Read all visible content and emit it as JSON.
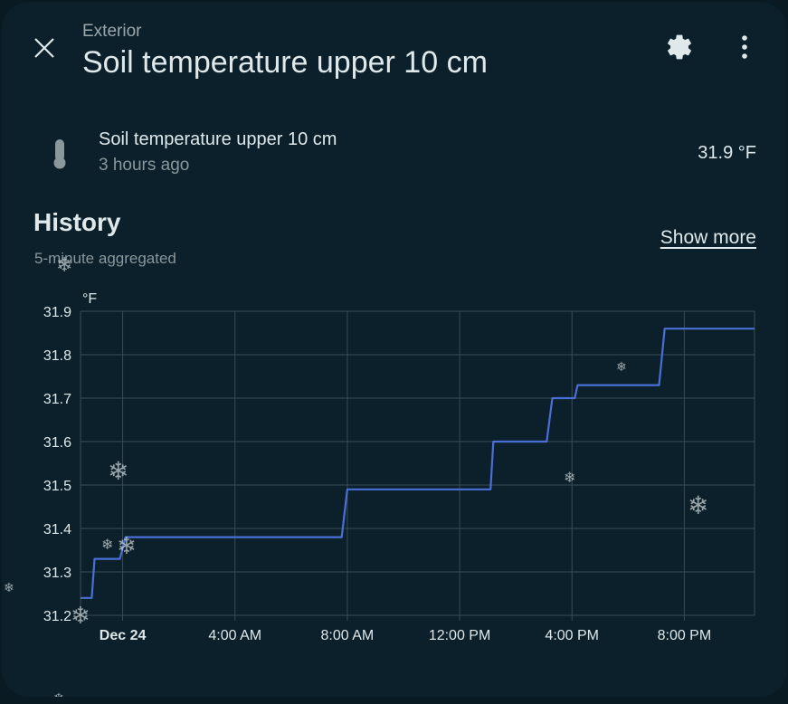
{
  "header": {
    "close_icon": "close-icon",
    "breadcrumb": "Exterior",
    "title": "Soil temperature upper 10 cm",
    "settings_icon": "gear-icon",
    "menu_icon": "dots-vertical-icon"
  },
  "entity": {
    "icon": "thermometer-icon",
    "name": "Soil temperature upper 10 cm",
    "last_changed": "3 hours ago",
    "state": "31.9 °F"
  },
  "history": {
    "title": "History",
    "subtitle": "5-minute aggregated",
    "show_more": "Show more"
  },
  "colors": {
    "background": "#0b202a",
    "line": "#4a6fd6",
    "grid": "#3a4c55"
  },
  "chart_data": {
    "type": "line",
    "ylabel": "°F",
    "ylim": [
      31.2,
      31.9
    ],
    "yticks": [
      "31.9",
      "31.8",
      "31.7",
      "31.6",
      "31.5",
      "31.4",
      "31.3",
      "31.2"
    ],
    "xlim_hours": [
      -1.5,
      22.5
    ],
    "xticks": [
      {
        "hour": 0,
        "label": "Dec 24",
        "bold": true
      },
      {
        "hour": 4,
        "label": "4:00 AM",
        "bold": false
      },
      {
        "hour": 8,
        "label": "8:00 AM",
        "bold": false
      },
      {
        "hour": 12,
        "label": "12:00 PM",
        "bold": false
      },
      {
        "hour": 16,
        "label": "4:00 PM",
        "bold": false
      },
      {
        "hour": 20,
        "label": "8:00 PM",
        "bold": false
      }
    ],
    "series": [
      {
        "points": [
          [
            -1.5,
            31.24
          ],
          [
            -1.1,
            31.24
          ],
          [
            -1.0,
            31.33
          ],
          [
            -0.1,
            31.33
          ],
          [
            0.1,
            31.38
          ],
          [
            2.0,
            31.38
          ],
          [
            3.0,
            31.38
          ],
          [
            6.0,
            31.38
          ],
          [
            7.8,
            31.38
          ],
          [
            8.0,
            31.49
          ],
          [
            13.1,
            31.49
          ],
          [
            13.2,
            31.6
          ],
          [
            15.1,
            31.6
          ],
          [
            15.3,
            31.7
          ],
          [
            16.1,
            31.7
          ],
          [
            16.2,
            31.73
          ],
          [
            19.1,
            31.73
          ],
          [
            19.3,
            31.86
          ],
          [
            22.5,
            31.86
          ]
        ]
      }
    ]
  }
}
